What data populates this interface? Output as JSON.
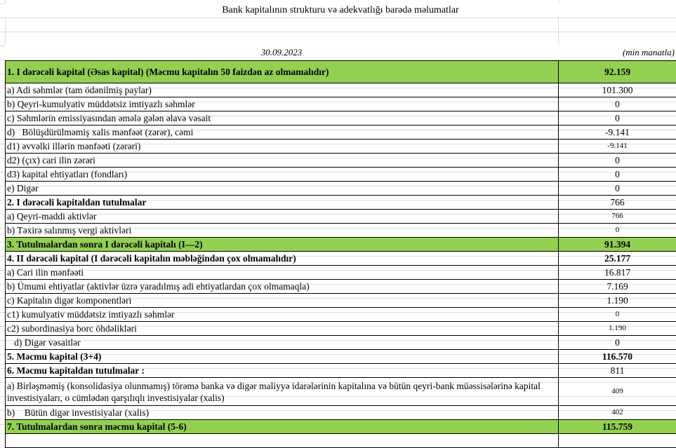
{
  "title": "Bank kapitalının strukturu və adekvatlığı barədə məlumatlar",
  "date": "30.09.2023",
  "unit": "(min manatla)",
  "colors": {
    "highlight": "#92d050"
  },
  "rows": [
    {
      "label": "1. I dərəcəli kapital (Əsas kapital) (Məcmu kapitalın 50 faizdən  az olmamalıdır)",
      "value": "92.159"
    },
    {
      "label": "a) Adi səhmlər (tam ödənilmiş paylar)",
      "value": "101.300"
    },
    {
      "label": "b) Qeyri-kumulyativ müddətsiz imtiyazlı səhmlər",
      "value": "0"
    },
    {
      "label": "c) Səhmlərin emissiyasından əmələ gələn  əlavə vəsait",
      "value": "0"
    },
    {
      "label": "d)   Bölüşdürülməmiş xalis mənfəət (zərər), cəmi",
      "value": "-9.141"
    },
    {
      "label": "d1) əvvəlki illərin mənfəəti (zərəri)",
      "value": "-9.141"
    },
    {
      "label": "d2) (çıx) cari ilin zərəri",
      "value": "0"
    },
    {
      "label": "d3) kapital ehtiyatları (fondları)",
      "value": "0"
    },
    {
      "label": "e) Digər",
      "value": "0"
    },
    {
      "label": "2. I dərəcəli kapitaldan  tutulmalar",
      "value": "766"
    },
    {
      "label": "a) Qeyri-maddi aktivlər",
      "value": "766"
    },
    {
      "label": "b) Təxirə salınmış vergi aktivləri",
      "value": "0"
    },
    {
      "label": "3. Tutulmalardan  sonra I dərəcəli kapitalı (I—2)",
      "value": "91.394"
    },
    {
      "label": "4. II dərəcəli  kapital (I dərəcəli  kapitalın  məbləğindən çox olmamalıdır)",
      "value": "25.177"
    },
    {
      "label": "a) Cari ilin mənfəəti",
      "value": "16.817"
    },
    {
      "label": "b) Ümumi ehtiyatlar (aktivlər üzrə yaradılmış adi ehtiyatlardan çox olmamaqla)",
      "value": "7.169"
    },
    {
      "label": "c)  Kapitalın digər komponentləri",
      "value": "1.190"
    },
    {
      "label": "c1) kumulyativ müddətsiz imtiyazlı səhmlər",
      "value": "0"
    },
    {
      "label": "c2) subordinasiya borc öhdəlikləri",
      "value": "1.190"
    },
    {
      "label": "   d) Digər vəsaitlər",
      "value": "0"
    },
    {
      "label": "5. Məcmu kapital (3+4)",
      "value": "116.570"
    },
    {
      "label": "6. Məcmu kapitaldan tutulmalar :",
      "value": "811"
    },
    {
      "label": "a)   Birləşməmiş (konsolidasiya olunmamış) törəmə banka və digər maliyyə idarələrinin kapitalına  və bütün qeyri-bank müəssisələrinə kapital investisiyaları, o cümlədən qarşılıqlı investisiyalar (xalis)",
      "value": "409"
    },
    {
      "label": "b)    Bütün digər investisiyalar (xalis)",
      "value": "402"
    },
    {
      "label": "7. Tutulmalardan  sonra məcmu kapital (5-6)",
      "value": "115.759"
    }
  ]
}
